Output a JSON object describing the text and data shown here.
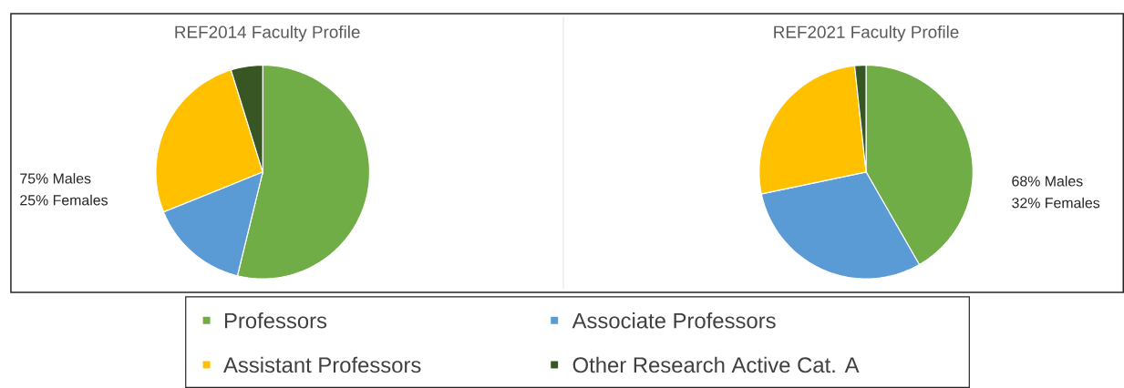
{
  "chart_data": [
    {
      "type": "pie",
      "title": "REF2014 Faculty Profile",
      "categories": [
        "Professors",
        "Associate Professors",
        "Assistant Professors",
        "Other Research Active Cat. A"
      ],
      "values": [
        53.8,
        15.1,
        26.3,
        4.8
      ],
      "colors": [
        "#70ad47",
        "#5b9bd5",
        "#ffc000",
        "#375623"
      ],
      "annotations": [
        "75% Males",
        "25% Females"
      ],
      "legend": "bottom"
    },
    {
      "type": "pie",
      "title": "REF2021 Faculty Profile",
      "categories": [
        null,
        null,
        null,
        null
      ],
      "values": [
        41.7,
        30.0,
        26.6,
        1.7
      ],
      "colors": [
        "#70ad47",
        "#5b9bd5",
        "#ffc000",
        "#375623"
      ],
      "annotations": [
        "68% Males",
        "32% Females"
      ]
    }
  ]
}
